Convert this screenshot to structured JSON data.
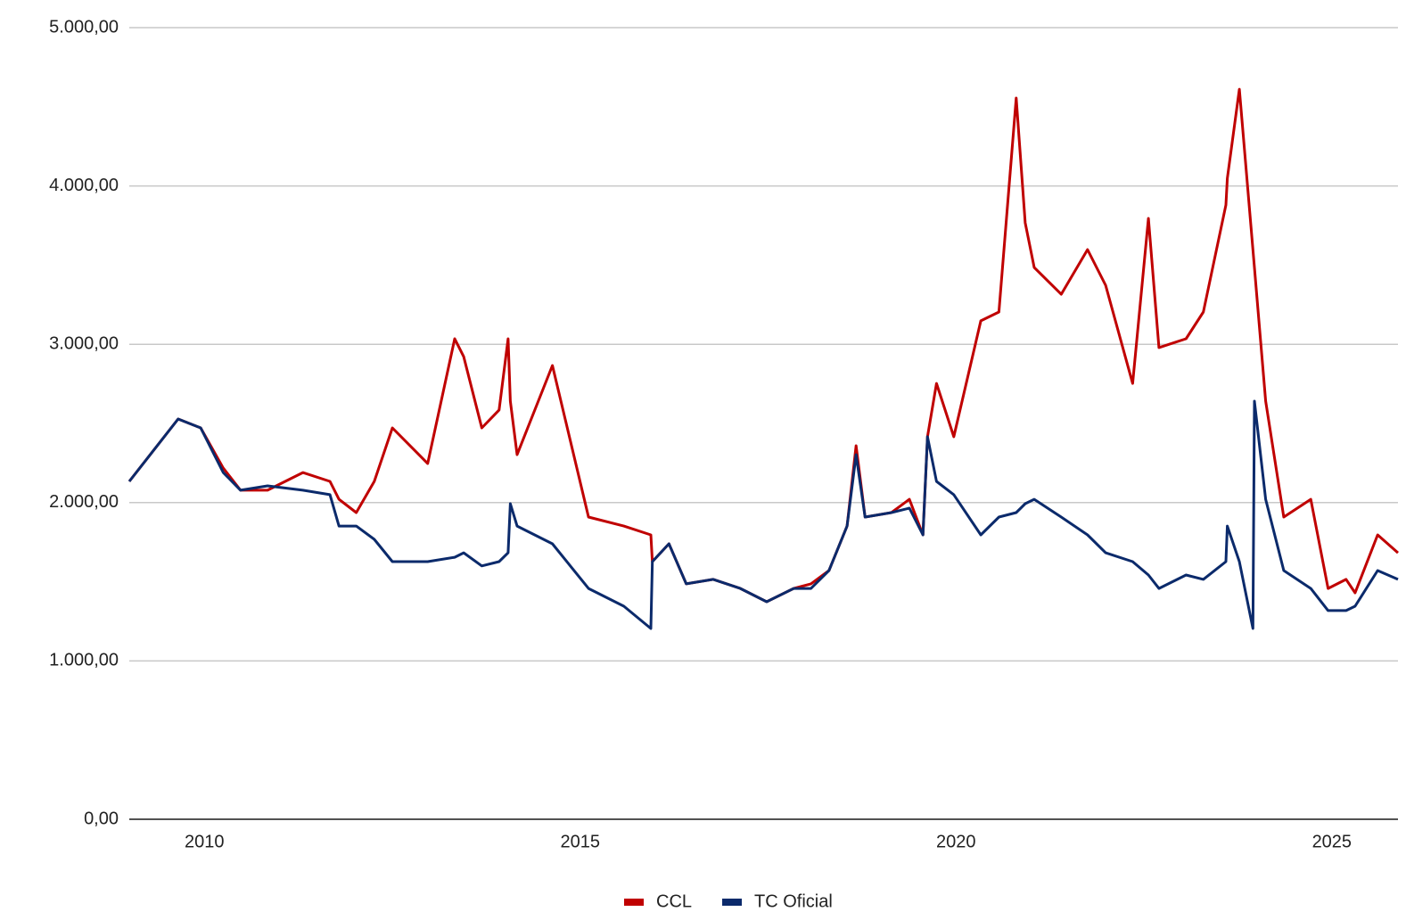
{
  "chart_data": {
    "type": "line",
    "x": [
      2009.0,
      2009.65,
      2009.95,
      2010.25,
      2010.48,
      2010.84,
      2011.31,
      2011.67,
      2011.79,
      2012.02,
      2012.26,
      2012.5,
      2012.97,
      2013.33,
      2013.45,
      2013.69,
      2013.92,
      2014.04,
      2014.07,
      2014.16,
      2014.63,
      2015.11,
      2015.58,
      2015.94,
      2015.96,
      2016.18,
      2016.41,
      2016.77,
      2017.13,
      2017.48,
      2017.84,
      2018.07,
      2018.31,
      2018.55,
      2018.67,
      2018.79,
      2019.14,
      2019.38,
      2019.56,
      2019.62,
      2019.74,
      2019.97,
      2020.33,
      2020.57,
      2020.8,
      2020.92,
      2021.04,
      2021.4,
      2021.75,
      2021.99,
      2022.35,
      2022.56,
      2022.7,
      2023.06,
      2023.29,
      2023.59,
      2023.61,
      2023.77,
      2023.95,
      2023.97,
      2024.12,
      2024.36,
      2024.72,
      2024.95,
      2025.19,
      2025.31,
      2025.61,
      2025.88
    ],
    "series": [
      {
        "name": "CCL",
        "color": "#c00000",
        "values": [
          2134,
          2528,
          2472,
          2218,
          2078,
          2078,
          2190,
          2134,
          2021,
          1937,
          2134,
          2472,
          2247,
          3035,
          2922,
          2472,
          2585,
          3035,
          2641,
          2303,
          2866,
          1909,
          1852,
          1796,
          1627,
          1740,
          1487,
          1515,
          1458,
          1374,
          1458,
          1487,
          1571,
          1852,
          2359,
          1909,
          1937,
          2021,
          1796,
          2416,
          2753,
          2416,
          3148,
          3204,
          4555,
          3767,
          3485,
          3316,
          3598,
          3373,
          2753,
          3795,
          2979,
          3035,
          3204,
          3880,
          4048,
          4611,
          3598,
          3485,
          2641,
          1909,
          2021,
          1458,
          1515,
          1430,
          1796,
          1683
        ]
      },
      {
        "name": "TC Oficial",
        "color": "#0b2a6b",
        "values": [
          2134,
          2528,
          2472,
          2190,
          2078,
          2106,
          2078,
          2050,
          1852,
          1852,
          1768,
          1627,
          1627,
          1655,
          1683,
          1600,
          1627,
          1683,
          1993,
          1852,
          1740,
          1458,
          1346,
          1205,
          1627,
          1740,
          1487,
          1515,
          1458,
          1374,
          1458,
          1458,
          1571,
          1852,
          2303,
          1909,
          1937,
          1965,
          1796,
          2416,
          2134,
          2050,
          1796,
          1909,
          1937,
          1993,
          2021,
          1909,
          1796,
          1683,
          1627,
          1543,
          1458,
          1543,
          1515,
          1627,
          1852,
          1627,
          1205,
          2641,
          2021,
          1571,
          1458,
          1318,
          1318,
          1346,
          1571,
          1515
        ]
      }
    ],
    "xlim": [
      2009.0,
      2025.88
    ],
    "xticks": [
      2010,
      2015,
      2020,
      2025
    ],
    "ylim": [
      0,
      5000
    ],
    "yticks": [
      {
        "value": 0,
        "label": "0,00"
      },
      {
        "value": 1000,
        "label": "1.000,00"
      },
      {
        "value": 2000,
        "label": "2.000,00"
      },
      {
        "value": 3000,
        "label": "3.000,00"
      },
      {
        "value": 4000,
        "label": "4.000,00"
      },
      {
        "value": 5000,
        "label": "5.000,00"
      }
    ],
    "grid": true,
    "legend": "bottom"
  }
}
